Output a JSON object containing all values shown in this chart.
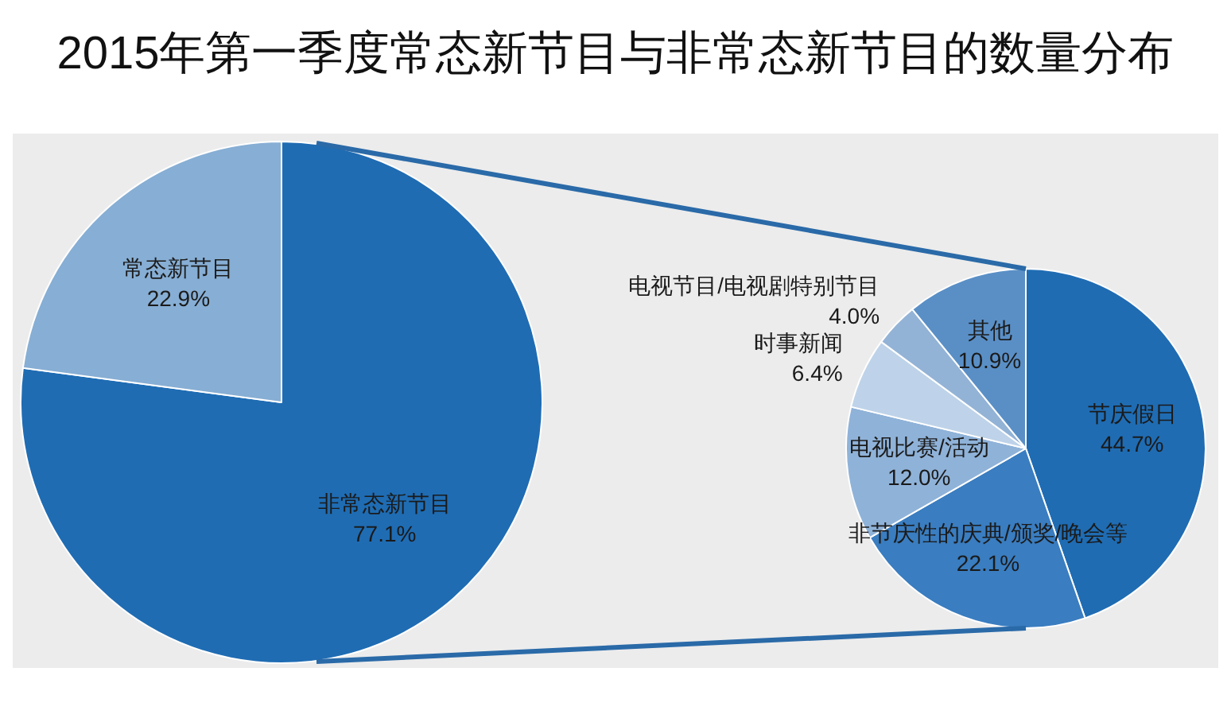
{
  "chart_data": [
    {
      "type": "pie",
      "title": "2015年第一季度常态新节目与非常态新节目的数量分布",
      "categories": [
        "非常态新节目",
        "常态新节目"
      ],
      "values": [
        77.1,
        22.9
      ],
      "colors": [
        "#1f6cb3",
        "#87aed4"
      ],
      "value_labels": [
        "77.1%",
        "22.9%"
      ]
    },
    {
      "type": "pie",
      "categories": [
        "节庆假日",
        "非节庆性的庆典/颁奖/晚会等",
        "电视比赛/活动",
        "时事新闻",
        "电视节目/电视剧特别节目",
        "其他"
      ],
      "values": [
        44.7,
        22.1,
        12.0,
        6.4,
        4.0,
        10.9
      ],
      "colors": [
        "#1f6cb3",
        "#3a7dc0",
        "#8fb2d8",
        "#bed3e9",
        "#93b3d6",
        "#5a8fc6"
      ],
      "value_labels": [
        "44.7%",
        "22.1%",
        "12.0%",
        "6.4%",
        "4.0%",
        "10.9%"
      ]
    }
  ]
}
